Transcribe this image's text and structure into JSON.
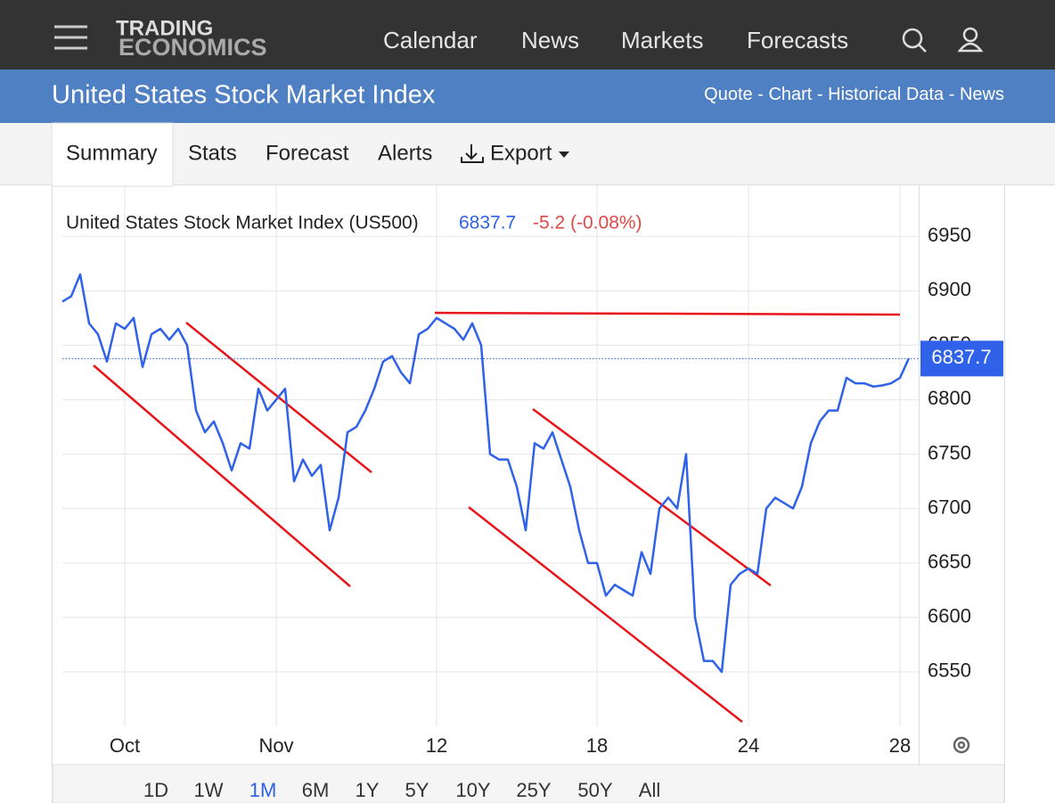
{
  "nav": {
    "logo_line1": "TRADING",
    "logo_line2": "ECONOMICS",
    "items": [
      "Calendar",
      "News",
      "Markets",
      "Forecasts"
    ]
  },
  "header": {
    "title": "United States Stock Market Index",
    "links": [
      "Quote",
      "Chart",
      "Historical Data",
      "News"
    ],
    "separator": "-"
  },
  "tabs": [
    "Summary",
    "Stats",
    "Forecast",
    "Alerts",
    "Export"
  ],
  "chart_data": {
    "type": "line",
    "title": "United States Stock Market Index (US500)",
    "last_price": 6837.7,
    "change": "-5.2 (-0.08%)",
    "color": "#2f62e8",
    "categories": [
      null,
      null,
      null,
      null,
      null,
      null,
      null,
      "Oct",
      null,
      null,
      null,
      null,
      null,
      null,
      null,
      null,
      null,
      null,
      null,
      null,
      null,
      null,
      null,
      null,
      "Nov",
      null,
      null,
      null,
      null,
      null,
      null,
      null,
      null,
      null,
      null,
      null,
      null,
      null,
      null,
      null,
      null,
      null,
      "12",
      null,
      null,
      null,
      null,
      null,
      null,
      null,
      null,
      null,
      null,
      null,
      null,
      null,
      null,
      null,
      null,
      null,
      "18",
      null,
      null,
      null,
      null,
      null,
      null,
      null,
      null,
      null,
      null,
      null,
      null,
      null,
      null,
      null,
      null,
      "24",
      null,
      null,
      null,
      null,
      null,
      null,
      null,
      null,
      null,
      null,
      null,
      null,
      null,
      null,
      null,
      null,
      "28",
      null
    ],
    "values": [
      6890,
      6895,
      6915,
      6870,
      6860,
      6835,
      6870,
      6865,
      6875,
      6830,
      6860,
      6865,
      6855,
      6865,
      6850,
      6790,
      6770,
      6780,
      6760,
      6735,
      6760,
      6755,
      6810,
      6790,
      6800,
      6810,
      6725,
      6745,
      6730,
      6740,
      6680,
      6710,
      6770,
      6775,
      6790,
      6810,
      6835,
      6840,
      6825,
      6815,
      6860,
      6865,
      6875,
      6870,
      6865,
      6855,
      6870,
      6850,
      6750,
      6745,
      6745,
      6720,
      6680,
      6760,
      6755,
      6770,
      6745,
      6720,
      6680,
      6650,
      6650,
      6620,
      6630,
      6625,
      6620,
      6660,
      6640,
      6700,
      6710,
      6700,
      6750,
      6600,
      6560,
      6560,
      6550,
      6630,
      6640,
      6645,
      6640,
      6700,
      6710,
      6705,
      6700,
      6720,
      6760,
      6780,
      6790,
      6790,
      6820,
      6815,
      6815,
      6812,
      6813,
      6815,
      6820,
      6838
    ],
    "ylim": [
      6500,
      7000
    ],
    "yticks": [
      6550,
      6600,
      6650,
      6700,
      6750,
      6800,
      6850,
      6900,
      6950
    ],
    "grid": true
  },
  "ranges": [
    "1D",
    "1W",
    "1M",
    "6M",
    "1Y",
    "5Y",
    "10Y",
    "25Y",
    "50Y",
    "All"
  ],
  "selected_range": "1M"
}
